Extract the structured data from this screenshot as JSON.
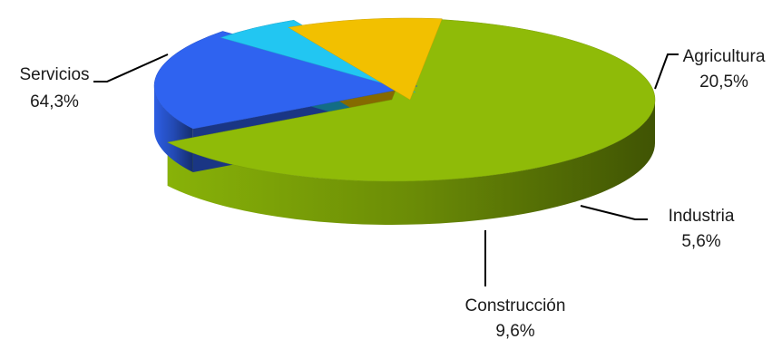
{
  "chart_data": {
    "type": "pie",
    "title": "",
    "slices": [
      {
        "label": "Servicios",
        "value": 64.3,
        "value_label": "64,3%",
        "color": "#8fbb08"
      },
      {
        "label": "Agricultura",
        "value": 20.5,
        "value_label": "20,5%",
        "color": "#2f63f0"
      },
      {
        "label": "Industria",
        "value": 5.6,
        "value_label": "5,6%",
        "color": "#22c6f2"
      },
      {
        "label": "Construcción",
        "value": 9.6,
        "value_label": "9,6%",
        "color": "#f2c000"
      }
    ],
    "legend": "none",
    "style": "3d-exploded"
  }
}
